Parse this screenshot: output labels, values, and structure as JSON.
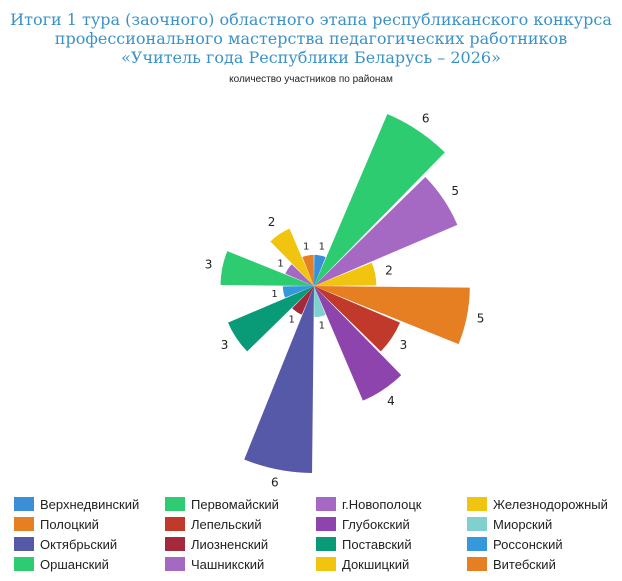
{
  "title_lines": [
    "Итоги 1 тура (заочного) областного этапа республиканского конкурса",
    "профессионального мастерства педагогических работников",
    "«Учитель года Республики Беларусь – 2026»"
  ],
  "chart_data": {
    "type": "polar-area",
    "title": "Итоги 1 тура (заочного) областного этапа республиканского конкурса профессионального мастерства педагогических работников «Учитель года Республики Беларусь – 2026»",
    "subtitle": "количество участников по районам",
    "max_value": 6,
    "legend_position": "bottom",
    "categories": [
      "Верхнедвинский",
      "Первомайский",
      "г.Новополоцк",
      "Железнодорожный",
      "Полоцкий",
      "Лепельский",
      "Глубокский",
      "Миорский",
      "Октябрьский",
      "Лиозненский",
      "Поставский",
      "Россонский",
      "Оршанский",
      "Чашникский",
      "Докшицкий",
      "Витебский"
    ],
    "values": [
      1,
      6,
      5,
      2,
      5,
      3,
      4,
      1,
      6,
      1,
      3,
      1,
      3,
      1,
      2,
      1
    ],
    "colors": [
      "#3a8fd6",
      "#2ecc71",
      "#a569c4",
      "#f1c40f",
      "#e67e22",
      "#c0392b",
      "#8e44ad",
      "#7fd1cf",
      "#5658a8",
      "#a32a3a",
      "#099b78",
      "#3498db",
      "#2ecc71",
      "#a569c4",
      "#f1c40f",
      "#e67e22"
    ]
  }
}
